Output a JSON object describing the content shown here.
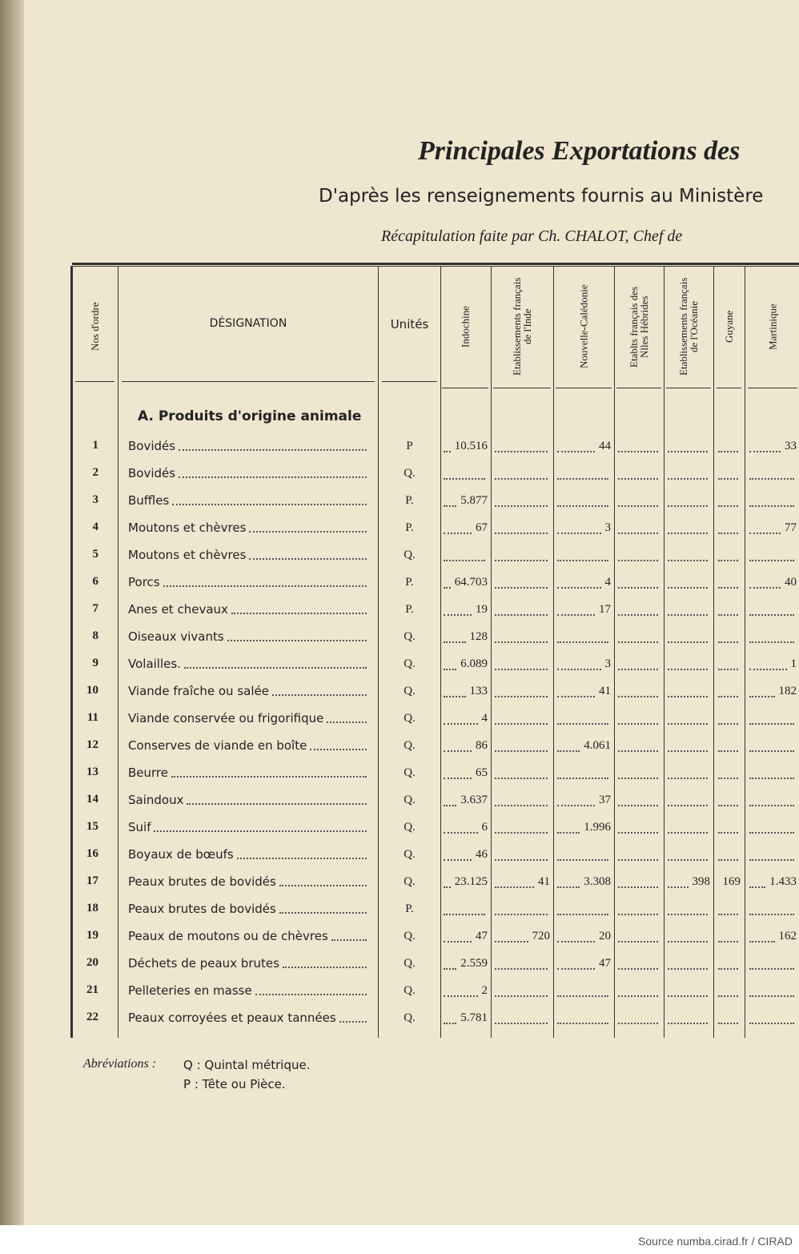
{
  "header": {
    "title": "Principales Exportations des",
    "subtitle": "D'après les renseignements fournis au Ministère",
    "recap": "Récapitulation faite par Ch. CHALOT, Chef de"
  },
  "table": {
    "columns": [
      "Nos d'ordre",
      "DÉSIGNATION",
      "Unités",
      "Indochine",
      "Etablissements français de l'Inde",
      "Nouvelle-Calédonie",
      "Etablts français des Nlles Hébrides",
      "Etablissements français de l'Océanie",
      "Guyane",
      "Martinique"
    ],
    "section": "A. Produits d'origine animale",
    "rows": [
      [
        "1",
        "Bovidés",
        "P",
        "10.516",
        null,
        "44",
        null,
        null,
        null,
        "33"
      ],
      [
        "2",
        "Bovidés",
        "Q.",
        null,
        null,
        null,
        null,
        null,
        null,
        null
      ],
      [
        "3",
        "Buffles",
        "P.",
        "5.877",
        null,
        null,
        null,
        null,
        null,
        null
      ],
      [
        "4",
        "Moutons et chèvres",
        "P.",
        "67",
        null,
        "3",
        null,
        null,
        null,
        "77"
      ],
      [
        "5",
        "Moutons et chèvres",
        "Q.",
        null,
        null,
        null,
        null,
        null,
        null,
        null
      ],
      [
        "6",
        "Porcs",
        "P.",
        "64.703",
        null,
        "4",
        null,
        null,
        null,
        "40"
      ],
      [
        "7",
        "Anes et chevaux",
        "P.",
        "19",
        null,
        "17",
        null,
        null,
        null,
        null
      ],
      [
        "8",
        "Oiseaux vivants",
        "Q.",
        "128",
        null,
        null,
        null,
        null,
        null,
        null
      ],
      [
        "9",
        "Volailles.",
        "Q.",
        "6.089",
        null,
        "3",
        null,
        null,
        null,
        "1"
      ],
      [
        "10",
        "Viande fraîche ou salée",
        "Q.",
        "133",
        null,
        "41",
        null,
        null,
        null,
        "182"
      ],
      [
        "11",
        "Viande conservée ou frigorifique",
        "Q.",
        "4",
        null,
        null,
        null,
        null,
        null,
        null
      ],
      [
        "12",
        "Conserves de viande en boîte",
        "Q.",
        "86",
        null,
        "4.061",
        null,
        null,
        null,
        null
      ],
      [
        "13",
        "Beurre",
        "Q.",
        "65",
        null,
        null,
        null,
        null,
        null,
        null
      ],
      [
        "14",
        "Saindoux",
        "Q.",
        "3.637",
        null,
        "37",
        null,
        null,
        null,
        null
      ],
      [
        "15",
        "Suif",
        "Q.",
        "6",
        null,
        "1.996",
        null,
        null,
        null,
        null
      ],
      [
        "16",
        "Boyaux de bœufs",
        "Q.",
        "46",
        null,
        null,
        null,
        null,
        null,
        null
      ],
      [
        "17",
        "Peaux brutes de bovidés",
        "Q.",
        "23.125",
        "41",
        "3.308",
        null,
        "398",
        "169",
        "1.433"
      ],
      [
        "18",
        "Peaux brutes de bovidés",
        "P.",
        null,
        null,
        null,
        null,
        null,
        null,
        null
      ],
      [
        "19",
        "Peaux de moutons ou de chèvres",
        "Q.",
        "47",
        "720",
        "20",
        null,
        null,
        null,
        "162"
      ],
      [
        "20",
        "Déchets de peaux brutes",
        "Q.",
        "2.559",
        null,
        "47",
        null,
        null,
        null,
        null
      ],
      [
        "21",
        "Pelleteries en masse",
        "Q.",
        "2",
        null,
        null,
        null,
        null,
        null,
        null
      ],
      [
        "22",
        "Peaux corroyées et peaux tannées",
        "Q.",
        "5.781",
        null,
        null,
        null,
        null,
        null,
        null
      ]
    ]
  },
  "footer": {
    "abbrev_label": "Abréviations :",
    "abbrev": [
      "Q : Quintal métrique.",
      "P : Tête ou Pièce."
    ],
    "source": "Source numba.cirad.fr / CIRAD"
  }
}
